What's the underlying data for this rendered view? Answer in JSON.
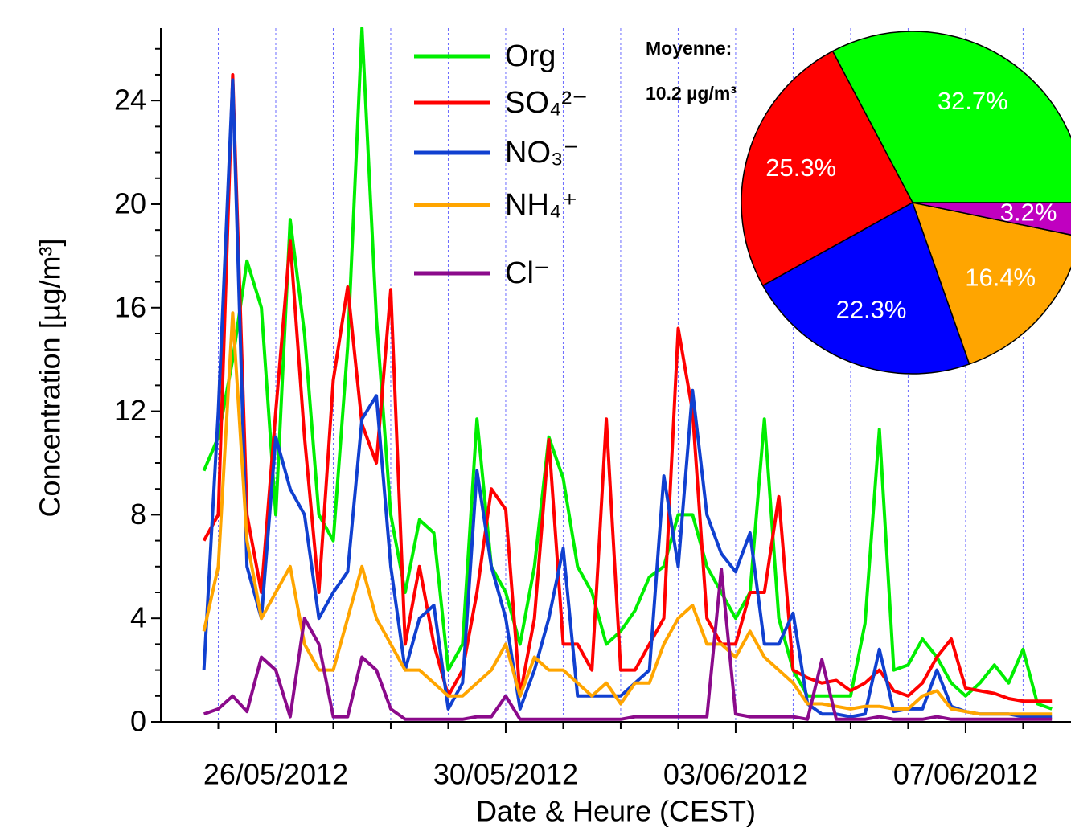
{
  "chart_data": [
    {
      "type": "line",
      "x_label": "Date & Heure (CEST)",
      "y_label": "Concentration [µg/m³]",
      "x": [
        "2012-05-24T18:00",
        "2012-05-25T00:00",
        "2012-05-25T06:00",
        "2012-05-25T12:00",
        "2012-05-25T18:00",
        "2012-05-26T00:00",
        "2012-05-26T06:00",
        "2012-05-26T12:00",
        "2012-05-26T18:00",
        "2012-05-27T00:00",
        "2012-05-27T06:00",
        "2012-05-27T12:00",
        "2012-05-27T18:00",
        "2012-05-28T00:00",
        "2012-05-28T06:00",
        "2012-05-28T12:00",
        "2012-05-28T18:00",
        "2012-05-29T00:00",
        "2012-05-29T06:00",
        "2012-05-29T12:00",
        "2012-05-29T18:00",
        "2012-05-30T00:00",
        "2012-05-30T06:00",
        "2012-05-30T12:00",
        "2012-05-30T18:00",
        "2012-05-31T00:00",
        "2012-05-31T06:00",
        "2012-05-31T12:00",
        "2012-05-31T18:00",
        "2012-06-01T00:00",
        "2012-06-01T06:00",
        "2012-06-01T12:00",
        "2012-06-01T18:00",
        "2012-06-02T00:00",
        "2012-06-02T06:00",
        "2012-06-02T12:00",
        "2012-06-02T18:00",
        "2012-06-03T00:00",
        "2012-06-03T06:00",
        "2012-06-03T12:00",
        "2012-06-03T18:00",
        "2012-06-04T00:00",
        "2012-06-04T06:00",
        "2012-06-04T12:00",
        "2012-06-04T18:00",
        "2012-06-05T00:00",
        "2012-06-05T06:00",
        "2012-06-05T12:00",
        "2012-06-05T18:00",
        "2012-06-06T00:00",
        "2012-06-06T06:00",
        "2012-06-06T12:00",
        "2012-06-06T18:00",
        "2012-06-07T00:00",
        "2012-06-07T06:00",
        "2012-06-07T12:00",
        "2012-06-07T18:00",
        "2012-06-08T00:00",
        "2012-06-08T06:00",
        "2012-06-08T12:00"
      ],
      "series": [
        {
          "name": "Org",
          "color": "#00ee00",
          "values": [
            9.7,
            11,
            14,
            17.8,
            16,
            8,
            19.4,
            15,
            8,
            7,
            14.5,
            26.8,
            15.6,
            8,
            5,
            7.8,
            7.3,
            2,
            3,
            11.7,
            6,
            5,
            3,
            6,
            11,
            9.4,
            6,
            5,
            3,
            3.5,
            4.3,
            5.6,
            6,
            8,
            8,
            6,
            5,
            4,
            5,
            11.7,
            4,
            2,
            1,
            1,
            1,
            1,
            3.8,
            11.3,
            2,
            2.2,
            3.2,
            2.5,
            1.5,
            1,
            1.5,
            2.2,
            1.5,
            2.8,
            0.7,
            0.5
          ]
        },
        {
          "name": "SO₄²⁻",
          "color": "#ff0000",
          "values": [
            7,
            8,
            25,
            8,
            5,
            12,
            18.6,
            11,
            5,
            13.2,
            16.8,
            11.5,
            10,
            16.7,
            3,
            6,
            3,
            1,
            2,
            5,
            9,
            8.2,
            1,
            4,
            10.9,
            3,
            3,
            2,
            11.7,
            2,
            2,
            3,
            4,
            15.2,
            12,
            4,
            3,
            3,
            5,
            5,
            8.7,
            2,
            1.7,
            1.5,
            1.6,
            1.2,
            1.5,
            2,
            1.2,
            1,
            1.5,
            2.5,
            3.2,
            1.3,
            1.2,
            1.1,
            0.9,
            0.8,
            0.8,
            0.8
          ]
        },
        {
          "name": "NO₃⁻",
          "color": "#1040d0",
          "values": [
            2,
            12,
            24.8,
            6,
            4,
            11,
            9,
            8,
            4,
            5,
            5.8,
            11.7,
            12.6,
            6,
            2,
            4,
            4.5,
            0.5,
            1.5,
            9.7,
            6,
            4,
            0.5,
            2,
            4,
            6.7,
            1,
            1,
            1,
            1,
            1.5,
            2,
            9.5,
            6,
            12.8,
            8,
            6.5,
            5.8,
            7.3,
            3,
            3,
            4.2,
            0.7,
            0.3,
            0.3,
            0.2,
            0.3,
            2.8,
            0.4,
            0.5,
            0.5,
            2,
            0.6,
            0.4,
            0.3,
            0.3,
            0.3,
            0.2,
            0.2,
            0.2
          ]
        },
        {
          "name": "NH₄⁺",
          "color": "#ffa500",
          "values": [
            3.5,
            6,
            15.8,
            7,
            4,
            5,
            6,
            3,
            2,
            2,
            4,
            6,
            4,
            3,
            2,
            2,
            1.5,
            1,
            1,
            1.5,
            2,
            3,
            1,
            2.5,
            2,
            2,
            1.5,
            1,
            1.5,
            0.7,
            1.5,
            1.5,
            3,
            4,
            4.5,
            3,
            3,
            2.5,
            3.5,
            2.5,
            2,
            1.5,
            0.7,
            0.7,
            0.6,
            0.5,
            0.6,
            0.6,
            0.5,
            0.5,
            1,
            1.2,
            0.5,
            0.4,
            0.3,
            0.3,
            0.3,
            0.3,
            0.3,
            0.3
          ]
        },
        {
          "name": "Cl⁻",
          "color": "#8b0a8b",
          "values": [
            0.3,
            0.5,
            1,
            0.4,
            2.5,
            2,
            0.2,
            4,
            3,
            0.2,
            0.2,
            2.5,
            2,
            0.5,
            0.1,
            0.1,
            0.1,
            0.1,
            0.1,
            0.2,
            0.2,
            1,
            0.1,
            0.1,
            0.1,
            0.1,
            0.1,
            0.1,
            0.1,
            0.1,
            0.2,
            0.2,
            0.2,
            0.2,
            0.2,
            0.2,
            5.9,
            0.3,
            0.2,
            0.2,
            0.2,
            0.2,
            0.1,
            2.4,
            0.1,
            0.1,
            0.1,
            0.2,
            0.1,
            0.1,
            0.1,
            0.2,
            0.1,
            0.1,
            0.1,
            0.1,
            0.1,
            0.1,
            0.1,
            0.1
          ]
        }
      ],
      "xlim": [
        "2012-05-24T00:00",
        "2012-06-08T20:00"
      ],
      "xticks": [
        {
          "value": "2012-05-26T00:00",
          "label": "26/05/2012"
        },
        {
          "value": "2012-05-30T00:00",
          "label": "30/05/2012"
        },
        {
          "value": "2012-06-03T00:00",
          "label": "03/06/2012"
        },
        {
          "value": "2012-06-07T00:00",
          "label": "07/06/2012"
        }
      ],
      "x_minor_ticks": [
        "2012-05-25T00:00",
        "2012-05-27T00:00",
        "2012-05-28T00:00",
        "2012-05-29T00:00",
        "2012-05-31T00:00",
        "2012-06-01T00:00",
        "2012-06-02T00:00",
        "2012-06-04T00:00",
        "2012-06-05T00:00",
        "2012-06-06T00:00",
        "2012-06-08T00:00"
      ],
      "ylim": [
        0,
        26.8
      ],
      "yticks": [
        0,
        4,
        8,
        12,
        16,
        20,
        24
      ],
      "y_minor_ticks": [
        1,
        2,
        3,
        5,
        6,
        7,
        9,
        10,
        11,
        13,
        14,
        15,
        17,
        18,
        19,
        21,
        22,
        23,
        25,
        26
      ],
      "grid": true,
      "legend": "top-center"
    },
    {
      "type": "pie",
      "title": "Moyenne:",
      "subtitle": "10.2 µg/m³",
      "values": [
        32.7,
        25.3,
        22.3,
        16.4,
        3.2
      ],
      "value_labels": [
        "32.7%",
        "25.3%",
        "22.3%",
        "16.4%",
        "3.2%"
      ],
      "colors": [
        "#00ff00",
        "#ff0000",
        "#0000ff",
        "#ffa500",
        "#c000c0"
      ],
      "start_angle": 0,
      "counterclock": true
    }
  ]
}
